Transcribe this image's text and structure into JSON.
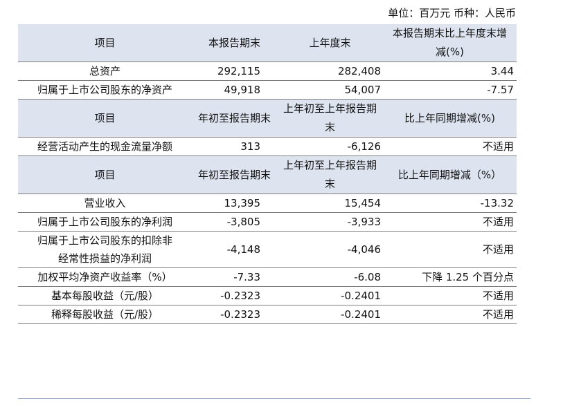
{
  "unit_line": "单位：百万元   币种：人民币",
  "sections": [
    {
      "header": [
        "项目",
        "本报告期末",
        "上年度末",
        "本报告期末比上年度末增减(%)"
      ],
      "rows": [
        [
          "总资产",
          "292,115",
          "282,408",
          "3.44"
        ],
        [
          "归属于上市公司股东的净资产",
          "49,918",
          "54,007",
          "-7.57"
        ]
      ]
    },
    {
      "header": [
        "项目",
        "年初至报告期末",
        "上年初至上年报告期末",
        "比上年同期增减(%)"
      ],
      "rows": [
        [
          "经营活动产生的现金流量净额",
          "313",
          "-6,126",
          "不适用"
        ]
      ]
    },
    {
      "header": [
        "项目",
        "年初至报告期末",
        "上年初至上年报告期末",
        "比上年同期增减（%）"
      ],
      "rows": [
        [
          "营业收入",
          "13,395",
          "15,454",
          "-13.32"
        ],
        [
          "归属于上市公司股东的净利润",
          "-3,805",
          "-3,933",
          "不适用"
        ],
        [
          "归属于上市公司股东的扣除非经常性损益的净利润",
          "-4,148",
          "-4,046",
          "不适用"
        ],
        [
          "加权平均净资产收益率（%）",
          "-7.33",
          "-6.08",
          "下降 1.25 个百分点"
        ],
        [
          "基本每股收益（元/股）",
          "-0.2323",
          "-0.2401",
          "不适用"
        ],
        [
          "稀释每股收益（元/股）",
          "-0.2323",
          "-0.2401",
          "不适用"
        ]
      ]
    }
  ]
}
